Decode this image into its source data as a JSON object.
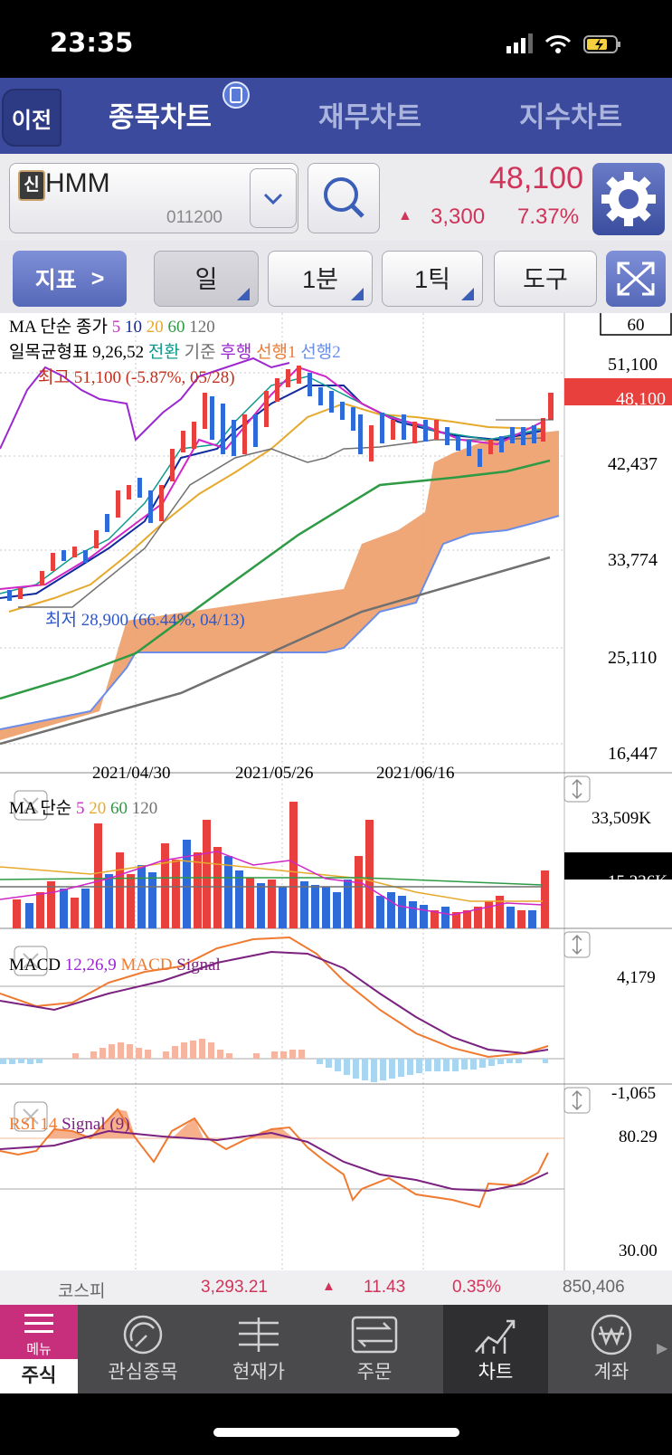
{
  "status_bar": {
    "time": "23:35"
  },
  "header": {
    "back_label": "이전",
    "tabs": [
      {
        "label": "종목차트",
        "active": true
      },
      {
        "label": "재무차트",
        "active": false
      },
      {
        "label": "지수차트",
        "active": false
      }
    ]
  },
  "stock": {
    "badge": "신",
    "name": "HMM",
    "code": "011200",
    "price": "48,100",
    "change": "3,300",
    "change_pct": "7.37%"
  },
  "toolbar": {
    "indicator_label": "지표",
    "period_buttons": [
      "일",
      "1분",
      "1틱"
    ],
    "tool_label": "도구"
  },
  "main_chart": {
    "period_box": "60",
    "legend_ma": {
      "label": "MA 단순 종가",
      "periods": [
        "5",
        "10",
        "20",
        "60",
        "120"
      ]
    },
    "legend_ichimoku": {
      "label": "일목균형표 9,26,52",
      "items": [
        "전환",
        "기준",
        "후행",
        "선행1",
        "선행2"
      ]
    },
    "high_note": "최고 51,100 (-5.87%, 05/28)",
    "low_note": "최저 28,900 (66.44%, 04/13)",
    "y_ticks": [
      "51,100",
      "42,437",
      "33,774",
      "25,110",
      "16,447"
    ],
    "current_price": "48,100",
    "x_ticks": [
      "2021/04/30",
      "2021/05/26",
      "2021/06/16"
    ]
  },
  "volume_panel": {
    "label": "MA 단순",
    "periods": [
      "5",
      "20",
      "60",
      "120"
    ],
    "max": "33,509K",
    "current": "15,236K"
  },
  "macd_panel": {
    "label": "MACD",
    "params": "12,26,9",
    "series": [
      "MACD",
      "Signal"
    ],
    "max": "4,179",
    "min": "-1,065"
  },
  "rsi_panel": {
    "label": "RSI 14",
    "signal": "Signal (9)",
    "max": "80.29",
    "min": "30.00"
  },
  "kospi": {
    "label": "코스피",
    "value": "3,293.21",
    "change": "11.43",
    "change_pct": "0.35%",
    "volume": "850,406"
  },
  "tab_bar": [
    {
      "label": "주식",
      "sub": "메뉴",
      "icon": "menu-icon",
      "active": true
    },
    {
      "label": "관심종목",
      "icon": "watchlist-icon"
    },
    {
      "label": "현재가",
      "icon": "current-price-icon"
    },
    {
      "label": "주문",
      "icon": "order-icon"
    },
    {
      "label": "차트",
      "icon": "chart-icon",
      "selected": true
    },
    {
      "label": "계좌",
      "icon": "won-icon"
    }
  ],
  "colors": {
    "up": "#e8403c",
    "down": "#2e6bd8",
    "header": "#3b4a9c",
    "cloud": "#efa06c"
  }
}
